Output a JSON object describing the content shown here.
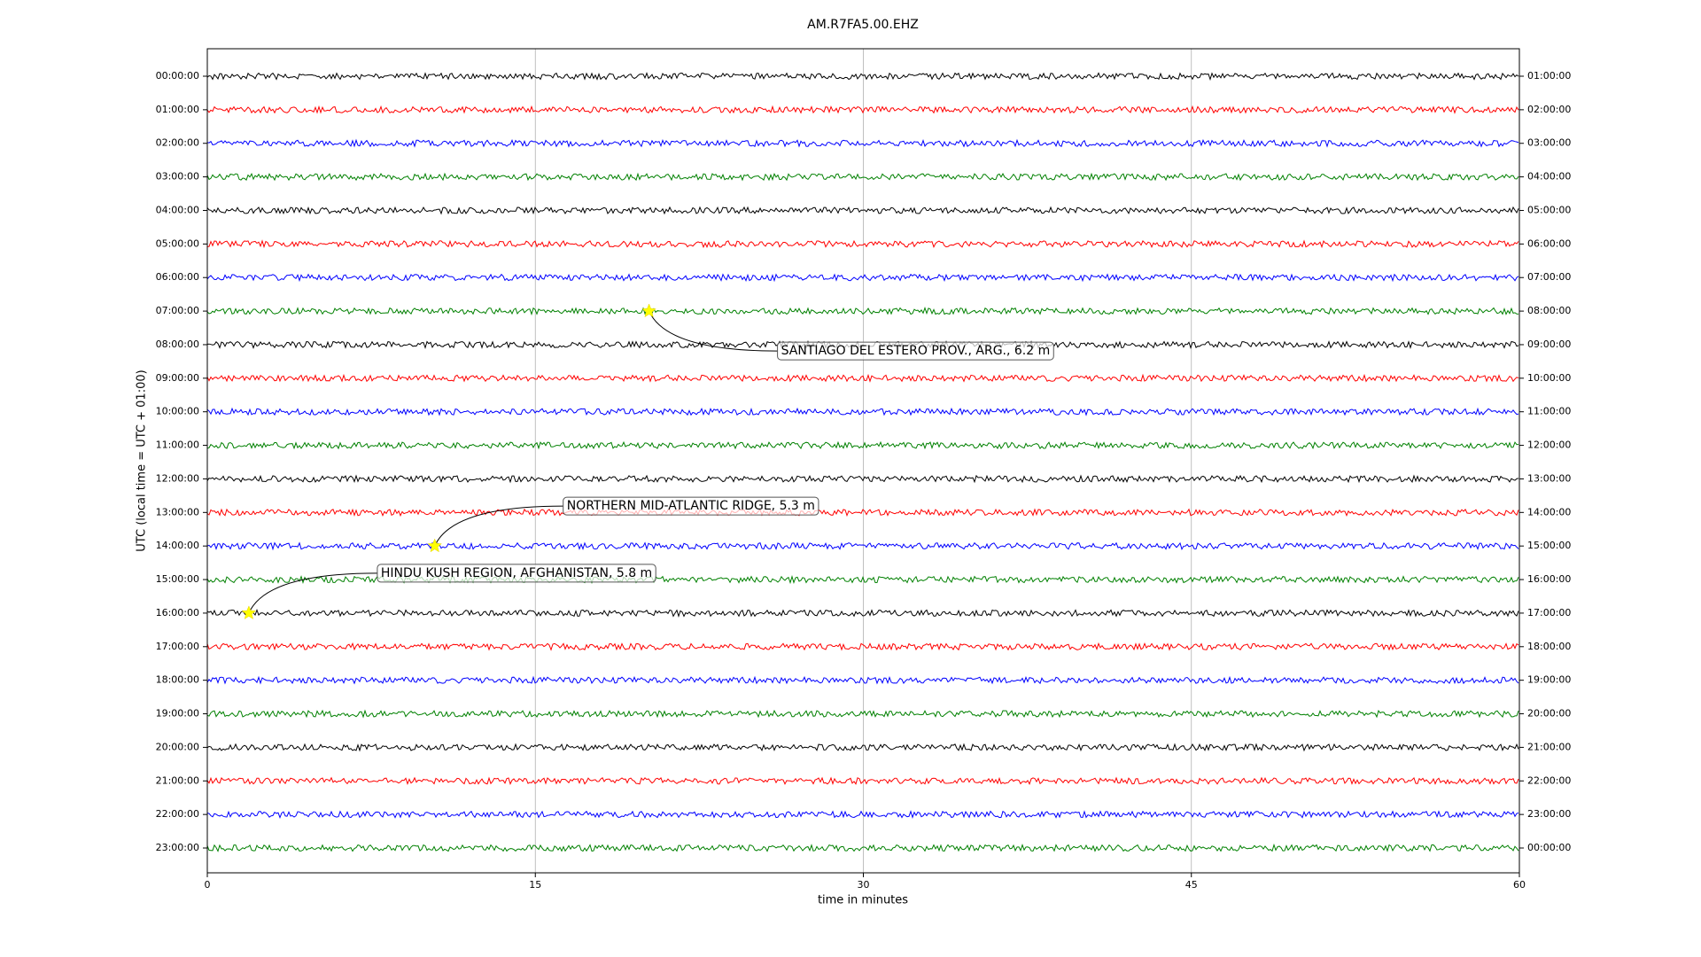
{
  "chart_data": {
    "type": "helicorder",
    "title": "AM.R7FA5.00.EHZ",
    "x_label": "time in minutes",
    "y_label": "UTC (local time = UTC + 01:00)",
    "xlim": [
      0,
      60
    ],
    "xticks": [
      0,
      15,
      30,
      45,
      60
    ],
    "grid": true,
    "rows": [
      {
        "name": "00:00:00",
        "right_label": "01:00:00",
        "color": "#000000"
      },
      {
        "name": "01:00:00",
        "right_label": "02:00:00",
        "color": "#ff0000"
      },
      {
        "name": "02:00:00",
        "right_label": "03:00:00",
        "color": "#0000ff"
      },
      {
        "name": "03:00:00",
        "right_label": "04:00:00",
        "color": "#008000"
      },
      {
        "name": "04:00:00",
        "right_label": "05:00:00",
        "color": "#000000"
      },
      {
        "name": "05:00:00",
        "right_label": "06:00:00",
        "color": "#ff0000"
      },
      {
        "name": "06:00:00",
        "right_label": "07:00:00",
        "color": "#0000ff"
      },
      {
        "name": "07:00:00",
        "right_label": "08:00:00",
        "color": "#008000",
        "events": [
          {
            "x": 20.2,
            "label": "SANTIAGO DEL ESTERO PROV., ARG., 6.2 m"
          }
        ]
      },
      {
        "name": "08:00:00",
        "right_label": "09:00:00",
        "color": "#000000"
      },
      {
        "name": "09:00:00",
        "right_label": "10:00:00",
        "color": "#ff0000"
      },
      {
        "name": "10:00:00",
        "right_label": "11:00:00",
        "color": "#0000ff"
      },
      {
        "name": "11:00:00",
        "right_label": "12:00:00",
        "color": "#008000"
      },
      {
        "name": "12:00:00",
        "right_label": "13:00:00",
        "color": "#000000"
      },
      {
        "name": "13:00:00",
        "right_label": "14:00:00",
        "color": "#ff0000"
      },
      {
        "name": "14:00:00",
        "right_label": "15:00:00",
        "color": "#0000ff",
        "events": [
          {
            "x": 10.4,
            "label": "NORTHERN MID-ATLANTIC RIDGE, 5.3 m"
          }
        ]
      },
      {
        "name": "15:00:00",
        "right_label": "16:00:00",
        "color": "#008000"
      },
      {
        "name": "16:00:00",
        "right_label": "17:00:00",
        "color": "#000000",
        "events": [
          {
            "x": 1.9,
            "label": "HINDU KUSH REGION, AFGHANISTAN, 5.8 m"
          }
        ]
      },
      {
        "name": "17:00:00",
        "right_label": "18:00:00",
        "color": "#ff0000"
      },
      {
        "name": "18:00:00",
        "right_label": "19:00:00",
        "color": "#0000ff"
      },
      {
        "name": "19:00:00",
        "right_label": "20:00:00",
        "color": "#008000"
      },
      {
        "name": "20:00:00",
        "right_label": "21:00:00",
        "color": "#000000"
      },
      {
        "name": "21:00:00",
        "right_label": "22:00:00",
        "color": "#ff0000"
      },
      {
        "name": "22:00:00",
        "right_label": "23:00:00",
        "color": "#0000ff"
      },
      {
        "name": "23:00:00",
        "right_label": "00:00:00",
        "color": "#008000"
      }
    ]
  }
}
